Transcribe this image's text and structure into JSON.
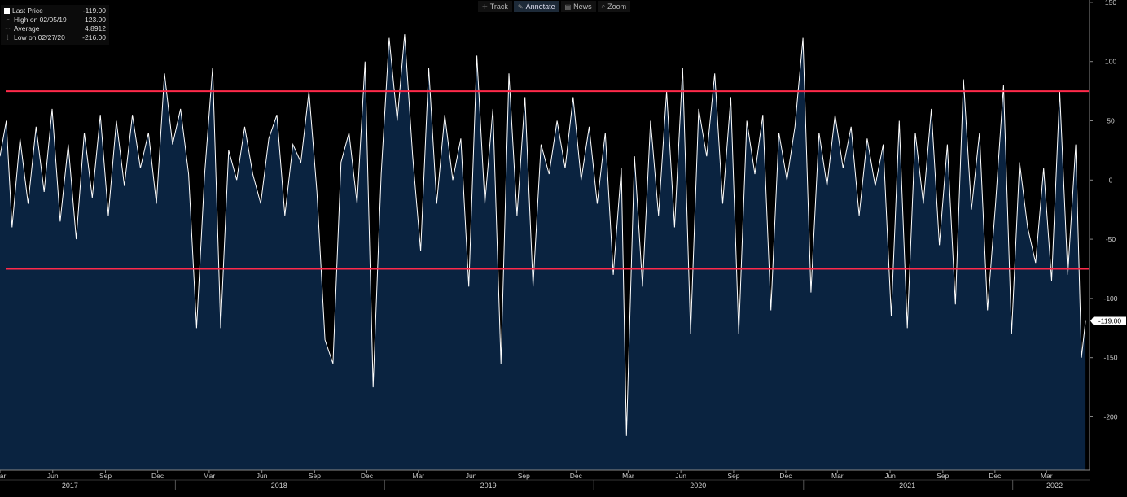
{
  "toolbar": {
    "items": [
      {
        "label": "Track",
        "icon": "crosshair-icon"
      },
      {
        "label": "Annotate",
        "icon": "pencil-icon"
      },
      {
        "label": "News",
        "icon": "news-icon"
      },
      {
        "label": "Zoom",
        "icon": "magnifier-icon"
      }
    ]
  },
  "legend": {
    "rows": [
      {
        "label": "Last Price",
        "value": "-119.00"
      },
      {
        "label": "High on 02/05/19",
        "value": "123.00"
      },
      {
        "label": "Average",
        "value": "4.8912"
      },
      {
        "label": "Low on 02/27/20",
        "value": "-216.00"
      }
    ]
  },
  "colors": {
    "background": "#000000",
    "area_fill": "#0a2340",
    "series_line": "#ffffff",
    "threshold_line": "#ff2a4a",
    "axis": "#888888"
  },
  "chart_data": {
    "type": "area",
    "title": "",
    "xlabel": "",
    "ylabel": "",
    "ylim": [
      -245,
      152
    ],
    "y_ticks": [
      150,
      100,
      50,
      0,
      -50,
      -100,
      -150,
      -200
    ],
    "y_tick_labels": [
      "150",
      "100",
      "50",
      "0",
      "-50",
      "-100",
      "-150",
      "-200"
    ],
    "x_range": [
      "2017-03-01",
      "2022-05-15"
    ],
    "x_month_labels": [
      {
        "date": "2017-03-01",
        "label": "Mar"
      },
      {
        "date": "2017-06-01",
        "label": "Jun"
      },
      {
        "date": "2017-09-01",
        "label": "Sep"
      },
      {
        "date": "2017-12-01",
        "label": "Dec"
      },
      {
        "date": "2018-03-01",
        "label": "Mar"
      },
      {
        "date": "2018-06-01",
        "label": "Jun"
      },
      {
        "date": "2018-09-01",
        "label": "Sep"
      },
      {
        "date": "2018-12-01",
        "label": "Dec"
      },
      {
        "date": "2019-03-01",
        "label": "Mar"
      },
      {
        "date": "2019-06-01",
        "label": "Jun"
      },
      {
        "date": "2019-09-01",
        "label": "Sep"
      },
      {
        "date": "2019-12-01",
        "label": "Dec"
      },
      {
        "date": "2020-03-01",
        "label": "Mar"
      },
      {
        "date": "2020-06-01",
        "label": "Jun"
      },
      {
        "date": "2020-09-01",
        "label": "Sep"
      },
      {
        "date": "2020-12-01",
        "label": "Dec"
      },
      {
        "date": "2021-03-01",
        "label": "Mar"
      },
      {
        "date": "2021-06-01",
        "label": "Jun"
      },
      {
        "date": "2021-09-01",
        "label": "Sep"
      },
      {
        "date": "2021-12-01",
        "label": "Dec"
      },
      {
        "date": "2022-03-01",
        "label": "Mar"
      }
    ],
    "x_year_labels": [
      {
        "date": "2017-07-01",
        "label": "2017"
      },
      {
        "date": "2018-07-01",
        "label": "2018"
      },
      {
        "date": "2019-07-01",
        "label": "2019"
      },
      {
        "date": "2020-07-01",
        "label": "2020"
      },
      {
        "date": "2021-07-01",
        "label": "2021"
      },
      {
        "date": "2022-03-15",
        "label": "2022"
      }
    ],
    "horizontal_lines": [
      75,
      -75
    ],
    "last_value_label": "-119.00",
    "series": [
      {
        "values": [
          [
            "2017-03-01",
            20
          ],
          [
            "2017-03-12",
            50
          ],
          [
            "2017-03-22",
            -40
          ],
          [
            "2017-04-05",
            35
          ],
          [
            "2017-04-19",
            -20
          ],
          [
            "2017-05-03",
            45
          ],
          [
            "2017-05-17",
            -10
          ],
          [
            "2017-05-31",
            60
          ],
          [
            "2017-06-14",
            -35
          ],
          [
            "2017-06-28",
            30
          ],
          [
            "2017-07-12",
            -50
          ],
          [
            "2017-07-26",
            40
          ],
          [
            "2017-08-09",
            -15
          ],
          [
            "2017-08-23",
            55
          ],
          [
            "2017-09-06",
            -30
          ],
          [
            "2017-09-20",
            50
          ],
          [
            "2017-10-04",
            -5
          ],
          [
            "2017-10-18",
            55
          ],
          [
            "2017-11-01",
            10
          ],
          [
            "2017-11-15",
            40
          ],
          [
            "2017-11-29",
            -20
          ],
          [
            "2017-12-13",
            90
          ],
          [
            "2017-12-27",
            30
          ],
          [
            "2018-01-10",
            60
          ],
          [
            "2018-01-24",
            5
          ],
          [
            "2018-02-07",
            -125
          ],
          [
            "2018-02-21",
            5
          ],
          [
            "2018-03-07",
            95
          ],
          [
            "2018-03-21",
            -125
          ],
          [
            "2018-04-04",
            25
          ],
          [
            "2018-04-18",
            0
          ],
          [
            "2018-05-02",
            45
          ],
          [
            "2018-05-16",
            5
          ],
          [
            "2018-05-30",
            -20
          ],
          [
            "2018-06-13",
            35
          ],
          [
            "2018-06-27",
            55
          ],
          [
            "2018-07-11",
            -30
          ],
          [
            "2018-07-25",
            30
          ],
          [
            "2018-08-08",
            15
          ],
          [
            "2018-08-22",
            75
          ],
          [
            "2018-09-05",
            -10
          ],
          [
            "2018-09-19",
            -135
          ],
          [
            "2018-10-03",
            -155
          ],
          [
            "2018-10-17",
            15
          ],
          [
            "2018-10-31",
            40
          ],
          [
            "2018-11-14",
            -20
          ],
          [
            "2018-11-28",
            100
          ],
          [
            "2018-12-12",
            -175
          ],
          [
            "2018-12-26",
            5
          ],
          [
            "2019-01-09",
            120
          ],
          [
            "2019-01-23",
            50
          ],
          [
            "2019-02-05",
            123
          ],
          [
            "2019-02-19",
            20
          ],
          [
            "2019-03-05",
            -60
          ],
          [
            "2019-03-19",
            95
          ],
          [
            "2019-04-02",
            -20
          ],
          [
            "2019-04-16",
            55
          ],
          [
            "2019-04-30",
            0
          ],
          [
            "2019-05-14",
            35
          ],
          [
            "2019-05-28",
            -90
          ],
          [
            "2019-06-11",
            105
          ],
          [
            "2019-06-25",
            -20
          ],
          [
            "2019-07-09",
            60
          ],
          [
            "2019-07-23",
            -155
          ],
          [
            "2019-08-06",
            90
          ],
          [
            "2019-08-20",
            -30
          ],
          [
            "2019-09-03",
            70
          ],
          [
            "2019-09-17",
            -90
          ],
          [
            "2019-10-01",
            30
          ],
          [
            "2019-10-15",
            5
          ],
          [
            "2019-10-29",
            50
          ],
          [
            "2019-11-12",
            10
          ],
          [
            "2019-11-26",
            70
          ],
          [
            "2019-12-10",
            0
          ],
          [
            "2019-12-24",
            45
          ],
          [
            "2020-01-07",
            -20
          ],
          [
            "2020-01-21",
            40
          ],
          [
            "2020-02-04",
            -80
          ],
          [
            "2020-02-18",
            10
          ],
          [
            "2020-02-27",
            -216
          ],
          [
            "2020-03-12",
            20
          ],
          [
            "2020-03-26",
            -90
          ],
          [
            "2020-04-09",
            50
          ],
          [
            "2020-04-23",
            -30
          ],
          [
            "2020-05-07",
            75
          ],
          [
            "2020-05-21",
            -40
          ],
          [
            "2020-06-04",
            95
          ],
          [
            "2020-06-18",
            -130
          ],
          [
            "2020-07-02",
            60
          ],
          [
            "2020-07-16",
            20
          ],
          [
            "2020-07-30",
            90
          ],
          [
            "2020-08-13",
            -20
          ],
          [
            "2020-08-27",
            70
          ],
          [
            "2020-09-10",
            -130
          ],
          [
            "2020-09-24",
            50
          ],
          [
            "2020-10-08",
            5
          ],
          [
            "2020-10-22",
            55
          ],
          [
            "2020-11-05",
            -110
          ],
          [
            "2020-11-19",
            40
          ],
          [
            "2020-12-03",
            0
          ],
          [
            "2020-12-17",
            45
          ],
          [
            "2020-12-31",
            120
          ],
          [
            "2021-01-14",
            -95
          ],
          [
            "2021-01-28",
            40
          ],
          [
            "2021-02-11",
            -5
          ],
          [
            "2021-02-25",
            55
          ],
          [
            "2021-03-11",
            10
          ],
          [
            "2021-03-25",
            45
          ],
          [
            "2021-04-08",
            -30
          ],
          [
            "2021-04-22",
            35
          ],
          [
            "2021-05-06",
            -5
          ],
          [
            "2021-05-20",
            30
          ],
          [
            "2021-06-03",
            -115
          ],
          [
            "2021-06-17",
            50
          ],
          [
            "2021-07-01",
            -125
          ],
          [
            "2021-07-15",
            40
          ],
          [
            "2021-07-29",
            -20
          ],
          [
            "2021-08-12",
            60
          ],
          [
            "2021-08-26",
            -55
          ],
          [
            "2021-09-09",
            30
          ],
          [
            "2021-09-23",
            -105
          ],
          [
            "2021-10-07",
            85
          ],
          [
            "2021-10-21",
            -25
          ],
          [
            "2021-11-04",
            40
          ],
          [
            "2021-11-18",
            -110
          ],
          [
            "2021-12-02",
            -20
          ],
          [
            "2021-12-16",
            80
          ],
          [
            "2021-12-30",
            -130
          ],
          [
            "2022-01-13",
            15
          ],
          [
            "2022-01-27",
            -40
          ],
          [
            "2022-02-10",
            -70
          ],
          [
            "2022-02-24",
            10
          ],
          [
            "2022-03-10",
            -85
          ],
          [
            "2022-03-24",
            75
          ],
          [
            "2022-04-07",
            -80
          ],
          [
            "2022-04-21",
            30
          ],
          [
            "2022-05-01",
            -150
          ],
          [
            "2022-05-08",
            -119
          ]
        ]
      }
    ]
  }
}
